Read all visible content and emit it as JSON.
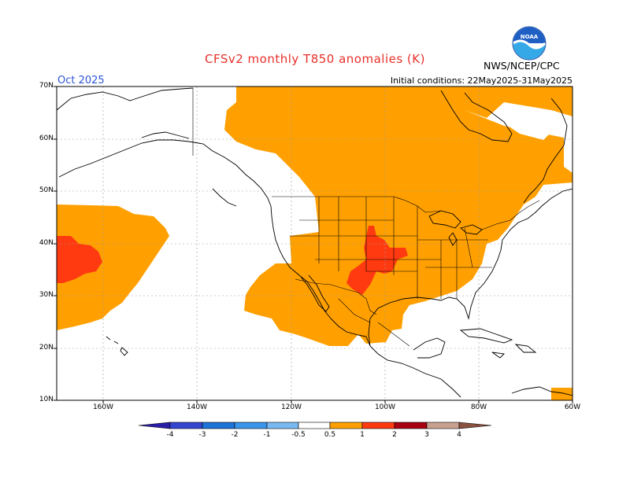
{
  "header": {
    "title": "CFSv2 monthly T850 anomalies (K)",
    "target_month": "Oct 2025",
    "initial_conditions": "Initial conditions: 22May2025-31May2025",
    "agency": "NWS/NCEP/CPC",
    "logo_text": "NOAA"
  },
  "map": {
    "projection": "cylindrical equidistant",
    "lon_range": [
      -170,
      -60
    ],
    "lat_range": [
      10,
      70
    ],
    "lat_labels": [
      "70N",
      "60N",
      "50N",
      "40N",
      "30N",
      "20N",
      "10N"
    ],
    "lon_labels": [
      "160W",
      "140W",
      "120W",
      "100W",
      "80W",
      "60W"
    ],
    "region": "North America and eastern North Pacific",
    "anomaly_areas": [
      {
        "name": "Canada, northern and central US",
        "category": "0.5 to 1"
      },
      {
        "name": "Southwestern US and Mexico",
        "category": "0.5 to 1"
      },
      {
        "name": "Central North Pacific",
        "category": "0.5 to 1"
      },
      {
        "name": "Southern Great Plains",
        "category": "1 to 2"
      },
      {
        "name": "Central North Pacific core",
        "category": "1 to 2"
      },
      {
        "name": "Eastern Caribbean",
        "category": "0.5 to 1"
      }
    ]
  },
  "colorbar": {
    "labels": [
      "-4",
      "-3",
      "-2",
      "-1",
      "-0.5",
      "0.5",
      "1",
      "2",
      "3",
      "4"
    ],
    "colors": [
      "#2a1fa8",
      "#3545d0",
      "#1c73d8",
      "#3a95ea",
      "#78b9f2",
      "#ffffff",
      "#ffa000",
      "#ff3a10",
      "#a80010",
      "#c8a090",
      "#8a5040"
    ]
  },
  "colors": {
    "title_red": "#e8302a",
    "month_blue": "#2d56d6",
    "anomaly_0_5_to_1": "#ffa000",
    "anomaly_1_to_2": "#ff3a10"
  }
}
